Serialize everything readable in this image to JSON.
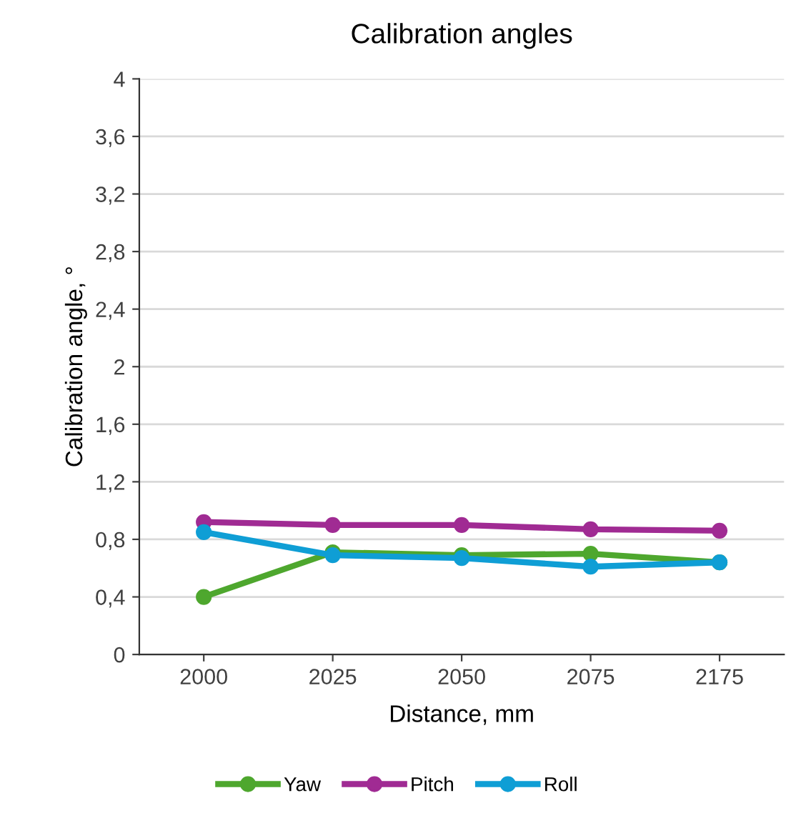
{
  "chart_data": {
    "type": "line",
    "title": "Calibration angles",
    "xlabel": "Distance, mm",
    "ylabel": "Calibration angle, °",
    "categories": [
      "2000",
      "2025",
      "2050",
      "2075",
      "2175"
    ],
    "series": [
      {
        "name": "Yaw",
        "color": "#4ea72e",
        "values": [
          0.4,
          0.71,
          0.69,
          0.7,
          0.64
        ]
      },
      {
        "name": "Pitch",
        "color": "#a02b93",
        "values": [
          0.92,
          0.9,
          0.9,
          0.87,
          0.86
        ]
      },
      {
        "name": "Roll",
        "color": "#0f9ed5",
        "values": [
          0.85,
          0.69,
          0.67,
          0.61,
          0.64
        ]
      }
    ],
    "ylim": [
      0,
      4
    ],
    "yticks": [
      0,
      {
        "value": 0.4,
        "label": "0,4"
      },
      {
        "value": 0.8,
        "label": "0,8"
      },
      {
        "value": 1.2,
        "label": "1,2"
      },
      {
        "value": 1.6,
        "label": "1,6"
      },
      2,
      {
        "value": 2.4,
        "label": "2,4"
      },
      {
        "value": 2.8,
        "label": "2,8"
      },
      {
        "value": 3.2,
        "label": "3,2"
      },
      {
        "value": 3.6,
        "label": "3,6"
      },
      4
    ],
    "grid": "y",
    "legend": "bottom",
    "marker": "circle",
    "line_style": "solid"
  }
}
